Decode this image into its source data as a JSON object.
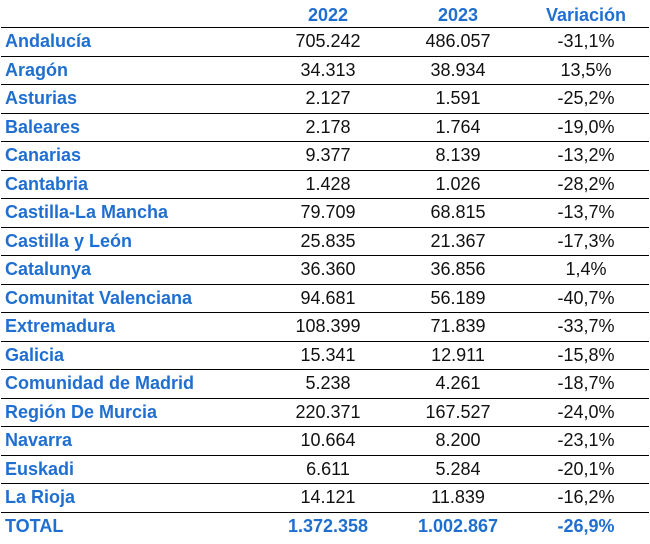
{
  "headers": [
    "",
    "2022",
    "2023",
    "Variación"
  ],
  "rows": [
    {
      "name": "Andalucía",
      "y2022": "705.242",
      "y2023": "486.057",
      "var": "-31,1%"
    },
    {
      "name": "Aragón",
      "y2022": "34.313",
      "y2023": "38.934",
      "var": "13,5%"
    },
    {
      "name": "Asturias",
      "y2022": "2.127",
      "y2023": "1.591",
      "var": "-25,2%"
    },
    {
      "name": "Baleares",
      "y2022": "2.178",
      "y2023": "1.764",
      "var": "-19,0%"
    },
    {
      "name": "Canarias",
      "y2022": "9.377",
      "y2023": "8.139",
      "var": "-13,2%"
    },
    {
      "name": "Cantabria",
      "y2022": "1.428",
      "y2023": "1.026",
      "var": "-28,2%"
    },
    {
      "name": "Castilla-La Mancha",
      "y2022": "79.709",
      "y2023": "68.815",
      "var": "-13,7%"
    },
    {
      "name": "Castilla y León",
      "y2022": "25.835",
      "y2023": "21.367",
      "var": "-17,3%"
    },
    {
      "name": "Catalunya",
      "y2022": "36.360",
      "y2023": "36.856",
      "var": "1,4%"
    },
    {
      "name": "Comunitat Valenciana",
      "y2022": "94.681",
      "y2023": "56.189",
      "var": "-40,7%"
    },
    {
      "name": "Extremadura",
      "y2022": "108.399",
      "y2023": "71.839",
      "var": "-33,7%"
    },
    {
      "name": "Galicia",
      "y2022": "15.341",
      "y2023": "12.911",
      "var": "-15,8%"
    },
    {
      "name": "Comunidad de Madrid",
      "y2022": "5.238",
      "y2023": "4.261",
      "var": "-18,7%"
    },
    {
      "name": "Región De Murcia",
      "y2022": "220.371",
      "y2023": "167.527",
      "var": "-24,0%"
    },
    {
      "name": "Navarra",
      "y2022": "10.664",
      "y2023": "8.200",
      "var": "-23,1%"
    },
    {
      "name": "Euskadi",
      "y2022": "6.611",
      "y2023": "5.284",
      "var": "-20,1%"
    },
    {
      "name": "La Rioja",
      "y2022": "14.121",
      "y2023": "11.839",
      "var": "-16,2%"
    }
  ],
  "total": {
    "name": "TOTAL",
    "y2022": "1.372.358",
    "y2023": "1.002.867",
    "var": "-26,9%"
  },
  "colors": {
    "accent": "#1f6fd1",
    "text": "#111111"
  }
}
